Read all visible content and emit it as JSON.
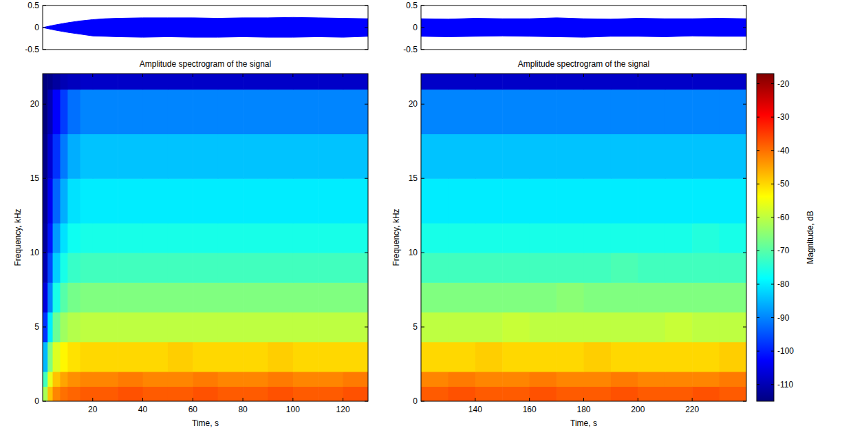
{
  "chart_data": [
    {
      "type": "area",
      "tick_labels": "y",
      "color": "#0000ff",
      "xlim": [
        0,
        130
      ],
      "ylim": [
        -0.5,
        0.5
      ],
      "yticks": [
        0.5,
        0,
        -0.5
      ],
      "x": [
        0,
        5,
        10,
        15,
        20,
        25,
        30,
        40,
        50,
        60,
        70,
        80,
        90,
        100,
        110,
        120,
        130
      ],
      "upper": [
        0,
        0.06,
        0.11,
        0.15,
        0.18,
        0.2,
        0.21,
        0.22,
        0.22,
        0.22,
        0.21,
        0.22,
        0.22,
        0.23,
        0.22,
        0.21,
        0.2
      ],
      "lower": [
        0,
        -0.06,
        -0.11,
        -0.15,
        -0.19,
        -0.2,
        -0.21,
        -0.22,
        -0.21,
        -0.22,
        -0.22,
        -0.21,
        -0.22,
        -0.22,
        -0.21,
        -0.22,
        -0.2
      ]
    },
    {
      "type": "heatmap",
      "title": "Amplitude spectrogram of the signal",
      "xlabel": "Time, s",
      "ylabel": "Frequency, kHz",
      "xlim": [
        0,
        130
      ],
      "ylim": [
        0,
        22.05
      ],
      "xticks": [
        20,
        40,
        60,
        80,
        100,
        120
      ],
      "yticks": [
        0,
        5,
        10,
        15,
        20
      ],
      "color_range": [
        -115,
        -17
      ],
      "time_edges": [
        0,
        2,
        4,
        7,
        10,
        15,
        20,
        30,
        40,
        50,
        60,
        70,
        80,
        90,
        100,
        110,
        120,
        130
      ],
      "freq_edges": [
        0,
        1,
        2,
        4,
        6,
        8,
        10,
        12,
        15,
        18,
        21,
        22.05
      ],
      "cells": [
        [
          -62,
          -48,
          -42,
          -40,
          -39,
          -38,
          -38,
          -37,
          -38,
          -38,
          -37,
          -38,
          -38,
          -37,
          -38,
          -38,
          -37
        ],
        [
          -72,
          -56,
          -48,
          -45,
          -43,
          -42,
          -42,
          -41,
          -42,
          -42,
          -41,
          -42,
          -42,
          -41,
          -42,
          -42,
          -41
        ],
        [
          -85,
          -66,
          -57,
          -53,
          -51,
          -50,
          -50,
          -50,
          -50,
          -49,
          -50,
          -50,
          -50,
          -49,
          -50,
          -50,
          -50
        ],
        [
          -98,
          -80,
          -68,
          -63,
          -61,
          -60,
          -60,
          -60,
          -60,
          -60,
          -60,
          -60,
          -60,
          -60,
          -60,
          -60,
          -60
        ],
        [
          -106,
          -90,
          -76,
          -70,
          -67,
          -66,
          -66,
          -66,
          -66,
          -66,
          -66,
          -66,
          -66,
          -66,
          -66,
          -66,
          -66
        ],
        [
          -110,
          -96,
          -83,
          -76,
          -73,
          -72,
          -72,
          -72,
          -72,
          -72,
          -72,
          -72,
          -72,
          -72,
          -72,
          -72,
          -72
        ],
        [
          -112,
          -101,
          -88,
          -81,
          -77,
          -76,
          -76,
          -76,
          -76,
          -76,
          -76,
          -76,
          -76,
          -76,
          -76,
          -76,
          -76
        ],
        [
          -113,
          -104,
          -93,
          -86,
          -81,
          -80,
          -80,
          -80,
          -80,
          -80,
          -80,
          -80,
          -80,
          -80,
          -80,
          -80,
          -80
        ],
        [
          -114,
          -107,
          -98,
          -91,
          -86,
          -84,
          -84,
          -84,
          -84,
          -84,
          -84,
          -84,
          -84,
          -84,
          -84,
          -84,
          -84
        ],
        [
          -115,
          -110,
          -103,
          -97,
          -92,
          -90,
          -90,
          -90,
          -90,
          -90,
          -90,
          -90,
          -90,
          -90,
          -90,
          -90,
          -90
        ],
        [
          -115,
          -114,
          -112,
          -110,
          -109,
          -108,
          -108,
          -108,
          -108,
          -108,
          -108,
          -108,
          -108,
          -108,
          -108,
          -108,
          -108
        ]
      ]
    },
    {
      "type": "area",
      "tick_labels": "y",
      "color": "#0000ff",
      "xlim": [
        120,
        240
      ],
      "ylim": [
        -0.5,
        0.5
      ],
      "yticks": [
        0.5,
        0,
        -0.5
      ],
      "x": [
        120,
        130,
        140,
        150,
        160,
        170,
        180,
        190,
        200,
        210,
        220,
        230,
        240
      ],
      "upper": [
        0.2,
        0.19,
        0.21,
        0.2,
        0.2,
        0.22,
        0.2,
        0.19,
        0.21,
        0.2,
        0.2,
        0.21,
        0.2
      ],
      "lower": [
        -0.2,
        -0.21,
        -0.2,
        -0.19,
        -0.2,
        -0.21,
        -0.22,
        -0.2,
        -0.2,
        -0.21,
        -0.19,
        -0.2,
        -0.2
      ]
    },
    {
      "type": "heatmap",
      "title": "Amplitude spectrogram of the signal",
      "xlabel": "Time, s",
      "ylabel": "Frequency, kHz",
      "xlim": [
        120,
        240
      ],
      "ylim": [
        0,
        22.05
      ],
      "xticks": [
        140,
        160,
        180,
        200,
        220
      ],
      "yticks": [
        0,
        5,
        10,
        15,
        20
      ],
      "color_range": [
        -115,
        -17
      ],
      "colorbar_label": "Magnitude, dB",
      "colorbar_ticks": [
        -20,
        -30,
        -40,
        -50,
        -60,
        -70,
        -80,
        -90,
        -100,
        -110
      ],
      "time_edges": [
        120,
        130,
        140,
        150,
        160,
        170,
        180,
        190,
        200,
        210,
        220,
        230,
        240
      ],
      "freq_edges": [
        0,
        1,
        2,
        4,
        6,
        8,
        10,
        12,
        15,
        18,
        21,
        22.05
      ],
      "cells": [
        [
          -38,
          -37,
          -38,
          -38,
          -37,
          -38,
          -38,
          -37,
          -38,
          -38,
          -37,
          -38
        ],
        [
          -42,
          -41,
          -42,
          -42,
          -41,
          -42,
          -42,
          -41,
          -42,
          -42,
          -42,
          -41
        ],
        [
          -50,
          -50,
          -49,
          -50,
          -50,
          -50,
          -49,
          -50,
          -50,
          -50,
          -50,
          -49
        ],
        [
          -60,
          -60,
          -60,
          -59,
          -60,
          -60,
          -60,
          -60,
          -60,
          -59,
          -60,
          -60
        ],
        [
          -66,
          -66,
          -66,
          -66,
          -66,
          -65,
          -66,
          -66,
          -66,
          -66,
          -66,
          -66
        ],
        [
          -72,
          -72,
          -72,
          -72,
          -72,
          -72,
          -72,
          -71,
          -72,
          -72,
          -72,
          -72
        ],
        [
          -76,
          -76,
          -76,
          -76,
          -76,
          -76,
          -76,
          -76,
          -76,
          -76,
          -75,
          -76
        ],
        [
          -80,
          -80,
          -80,
          -80,
          -80,
          -80,
          -80,
          -80,
          -80,
          -80,
          -80,
          -80
        ],
        [
          -84,
          -84,
          -84,
          -84,
          -84,
          -84,
          -84,
          -84,
          -84,
          -84,
          -84,
          -84
        ],
        [
          -90,
          -90,
          -90,
          -90,
          -90,
          -90,
          -90,
          -90,
          -90,
          -90,
          -90,
          -90
        ],
        [
          -108,
          -108,
          -108,
          -108,
          -108,
          -108,
          -108,
          -108,
          -108,
          -108,
          -108,
          -108
        ]
      ]
    }
  ]
}
